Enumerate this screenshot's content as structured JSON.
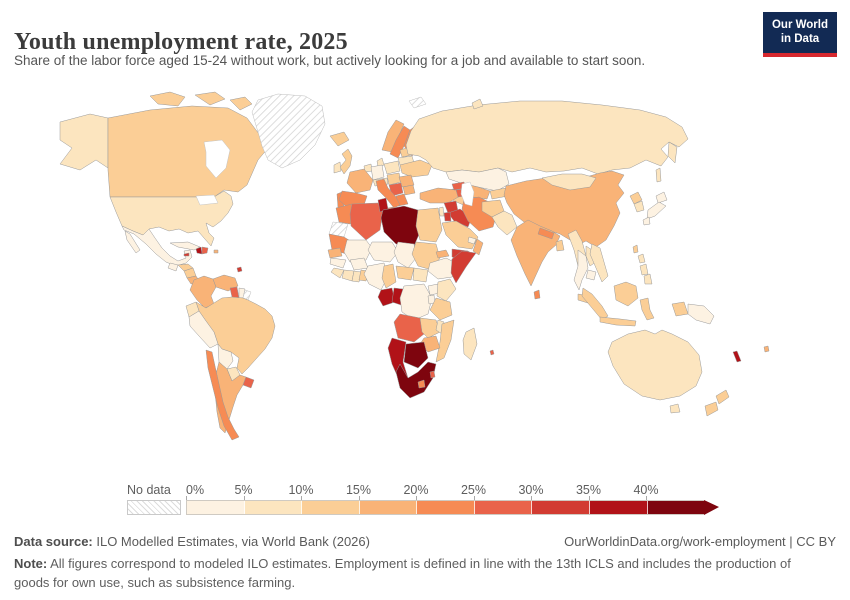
{
  "header": {
    "title": "Youth unemployment rate, 2025",
    "subtitle": "Share of the labor force aged 15-24 without work, but actively looking for a job and available to start soon.",
    "logo": {
      "line1": "Our World",
      "line2": "in Data",
      "bg_color": "#122a54",
      "accent_color": "#d7282f"
    }
  },
  "legend": {
    "no_data_label": "No data",
    "ticks": [
      "0%",
      "5%",
      "10%",
      "15%",
      "20%",
      "25%",
      "30%",
      "35%",
      "40%"
    ],
    "bin_colors": [
      "#fdf2e2",
      "#fce5bf",
      "#fbce96",
      "#f9b377",
      "#f68b54",
      "#e9634a",
      "#d23c32",
      "#b11218",
      "#7e050e"
    ]
  },
  "footer": {
    "datasource_label": "Data source:",
    "datasource_text": " ILO Modelled Estimates, via World Bank (2026)",
    "link_text": "OurWorldinData.org/work-employment | CC BY",
    "note_label": "Note:",
    "note_text": " All figures correspond to modeled ILO estimates. Employment is defined in line with the 13th ICLS and includes the production of goods for own use, such as subsistence farming."
  },
  "chart_data": {
    "type": "choropleth",
    "title": "Youth unemployment rate, 2025",
    "year": "2025",
    "unit": "%",
    "bins": [
      "0-5%",
      "5-10%",
      "10-15%",
      "15-20%",
      "20-25%",
      "25-30%",
      "30-35%",
      "35-40%",
      "40%+"
    ],
    "countries": {
      "canada": {
        "name": "Canada",
        "bin": 2
      },
      "usa": {
        "name": "United States",
        "bin": 1
      },
      "greenland": {
        "name": "Greenland",
        "bin": null
      },
      "iceland": {
        "name": "Iceland",
        "bin": 2
      },
      "mexico": {
        "name": "Mexico",
        "bin": 0
      },
      "guatemala": {
        "name": "Guatemala",
        "bin": 0
      },
      "honduras": {
        "name": "Honduras",
        "bin": 2
      },
      "nicaragua": {
        "name": "Nicaragua",
        "bin": 2
      },
      "costa_rica": {
        "name": "Costa Rica",
        "bin": 3
      },
      "panama": {
        "name": "Panama",
        "bin": 3
      },
      "cuba": {
        "name": "Cuba",
        "bin": 0
      },
      "haiti": {
        "name": "Haiti",
        "bin": 7
      },
      "dominican_republic": {
        "name": "Dominican Republic",
        "bin": 5
      },
      "jamaica": {
        "name": "Jamaica",
        "bin": 6
      },
      "puerto_rico": {
        "name": "Puerto Rico",
        "bin": 3
      },
      "trinidad_tobago": {
        "name": "Trinidad and Tobago",
        "bin": 6
      },
      "colombia": {
        "name": "Colombia",
        "bin": 3
      },
      "venezuela": {
        "name": "Venezuela",
        "bin": 3
      },
      "guyana": {
        "name": "Guyana",
        "bin": 5
      },
      "suriname": {
        "name": "Suriname",
        "bin": 0
      },
      "french_guiana": {
        "name": "French Guiana",
        "bin": null
      },
      "ecuador": {
        "name": "Ecuador",
        "bin": 1
      },
      "peru": {
        "name": "Peru",
        "bin": 0
      },
      "brazil": {
        "name": "Brazil",
        "bin": 2
      },
      "bolivia": {
        "name": "Bolivia",
        "bin": 0
      },
      "paraguay": {
        "name": "Paraguay",
        "bin": 1
      },
      "chile": {
        "name": "Chile",
        "bin": 4
      },
      "argentina": {
        "name": "Argentina",
        "bin": 3
      },
      "uruguay": {
        "name": "Uruguay",
        "bin": 5
      },
      "united_kingdom": {
        "name": "United Kingdom",
        "bin": 2
      },
      "ireland": {
        "name": "Ireland",
        "bin": 1
      },
      "norway": {
        "name": "Norway",
        "bin": 3
      },
      "sweden": {
        "name": "Sweden",
        "bin": 4
      },
      "finland": {
        "name": "Finland",
        "bin": 4
      },
      "denmark": {
        "name": "Denmark",
        "bin": 1
      },
      "germany": {
        "name": "Germany",
        "bin": 0
      },
      "netherlands_belgium": {
        "name": "Netherlands & Belgium",
        "bin": 1
      },
      "france": {
        "name": "France",
        "bin": 3
      },
      "spain": {
        "name": "Spain",
        "bin": 4
      },
      "portugal": {
        "name": "Portugal",
        "bin": 4
      },
      "italy": {
        "name": "Italy",
        "bin": 4
      },
      "switzerland_austria": {
        "name": "Switzerland & Austria",
        "bin": 1
      },
      "poland": {
        "name": "Poland",
        "bin": 1
      },
      "czechia_hungary": {
        "name": "Czechia & Hungary",
        "bin": 2
      },
      "romania": {
        "name": "Romania",
        "bin": 3
      },
      "balkans": {
        "name": "Western Balkans",
        "bin": 5
      },
      "greece": {
        "name": "Greece",
        "bin": 4
      },
      "bulgaria": {
        "name": "Bulgaria",
        "bin": 3
      },
      "ukraine": {
        "name": "Ukraine",
        "bin": 2
      },
      "belarus": {
        "name": "Belarus",
        "bin": 1
      },
      "baltics": {
        "name": "Baltic states",
        "bin": 2
      },
      "russia": {
        "name": "Russia",
        "bin": 1
      },
      "svalbard": {
        "name": "Svalbard",
        "bin": null
      },
      "kazakhstan": {
        "name": "Kazakhstan",
        "bin": 0
      },
      "uzbekistan": {
        "name": "Uzbekistan",
        "bin": 3
      },
      "turkmenistan": {
        "name": "Turkmenistan",
        "bin": 2
      },
      "kyrgyzstan": {
        "name": "Kyrgyzstan & Tajikistan",
        "bin": 2
      },
      "afghanistan": {
        "name": "Afghanistan",
        "bin": 2
      },
      "pakistan": {
        "name": "Pakistan",
        "bin": 1
      },
      "china": {
        "name": "China",
        "bin": 3
      },
      "mongolia": {
        "name": "Mongolia",
        "bin": 1
      },
      "north_korea": {
        "name": "North Korea",
        "bin": 2
      },
      "south_korea": {
        "name": "South Korea",
        "bin": 1
      },
      "japan": {
        "name": "Japan",
        "bin": 0
      },
      "taiwan": {
        "name": "Taiwan",
        "bin": 2
      },
      "india": {
        "name": "India",
        "bin": 3
      },
      "nepal": {
        "name": "Nepal",
        "bin": 4
      },
      "bangladesh": {
        "name": "Bangladesh",
        "bin": 2
      },
      "sri_lanka": {
        "name": "Sri Lanka",
        "bin": 4
      },
      "myanmar": {
        "name": "Myanmar",
        "bin": 1
      },
      "thailand": {
        "name": "Thailand",
        "bin": 0
      },
      "laos": {
        "name": "Laos",
        "bin": 1
      },
      "vietnam": {
        "name": "Vietnam",
        "bin": 1
      },
      "cambodia": {
        "name": "Cambodia",
        "bin": 0
      },
      "malaysia": {
        "name": "Malaysia",
        "bin": 2
      },
      "philippines": {
        "name": "Philippines",
        "bin": 1
      },
      "indonesia": {
        "name": "Indonesia",
        "bin": 2
      },
      "papua_new_guinea": {
        "name": "Papua New Guinea",
        "bin": 0
      },
      "turkey": {
        "name": "Turkey",
        "bin": 3
      },
      "georgia": {
        "name": "Georgia",
        "bin": 5
      },
      "armenia_azerbaijan": {
        "name": "Armenia & Azerbaijan",
        "bin": 5
      },
      "syria": {
        "name": "Syria",
        "bin": 6
      },
      "iraq": {
        "name": "Iraq",
        "bin": 6
      },
      "iran": {
        "name": "Iran",
        "bin": 4
      },
      "jordan": {
        "name": "Jordan",
        "bin": 6
      },
      "israel": {
        "name": "Israel",
        "bin": 1
      },
      "saudi_arabia": {
        "name": "Saudi Arabia",
        "bin": 2
      },
      "yemen": {
        "name": "Yemen",
        "bin": 6
      },
      "oman": {
        "name": "Oman",
        "bin": 3
      },
      "uae": {
        "name": "United Arab Emirates",
        "bin": 0
      },
      "morocco": {
        "name": "Morocco",
        "bin": 4
      },
      "western_sahara": {
        "name": "Western Sahara",
        "bin": null
      },
      "algeria": {
        "name": "Algeria",
        "bin": 5
      },
      "tunisia": {
        "name": "Tunisia",
        "bin": 7
      },
      "libya": {
        "name": "Libya",
        "bin": 8
      },
      "egypt": {
        "name": "Egypt",
        "bin": 2
      },
      "mauritania": {
        "name": "Mauritania",
        "bin": 4
      },
      "mali": {
        "name": "Mali",
        "bin": 0
      },
      "niger": {
        "name": "Niger",
        "bin": 0
      },
      "chad": {
        "name": "Chad",
        "bin": 0
      },
      "sudan": {
        "name": "Sudan",
        "bin": 2
      },
      "eritrea": {
        "name": "Eritrea",
        "bin": 3
      },
      "ethiopia": {
        "name": "Ethiopia",
        "bin": 0
      },
      "somalia": {
        "name": "Somalia",
        "bin": 6
      },
      "senegal": {
        "name": "Senegal",
        "bin": 3
      },
      "guinea": {
        "name": "Guinea",
        "bin": 0
      },
      "sierra_leone_liberia": {
        "name": "Sierra Leone & Liberia",
        "bin": 1
      },
      "ivory_coast": {
        "name": "Côte d'Ivoire",
        "bin": 1
      },
      "ghana": {
        "name": "Ghana",
        "bin": 1
      },
      "togo_benin": {
        "name": "Togo & Benin",
        "bin": 2
      },
      "burkina_faso": {
        "name": "Burkina Faso",
        "bin": 0
      },
      "nigeria": {
        "name": "Nigeria",
        "bin": 0
      },
      "cameroon": {
        "name": "Cameroon",
        "bin": 2
      },
      "central_african_republic": {
        "name": "Central African Republic",
        "bin": 2
      },
      "south_sudan": {
        "name": "South Sudan",
        "bin": 1
      },
      "gabon": {
        "name": "Gabon",
        "bin": 7
      },
      "congo": {
        "name": "Congo",
        "bin": 7
      },
      "drc": {
        "name": "Democratic Republic of Congo",
        "bin": 0
      },
      "uganda": {
        "name": "Uganda",
        "bin": 0
      },
      "kenya": {
        "name": "Kenya",
        "bin": 1
      },
      "rwanda_burundi": {
        "name": "Rwanda & Burundi",
        "bin": 0
      },
      "tanzania": {
        "name": "Tanzania",
        "bin": 2
      },
      "angola": {
        "name": "Angola",
        "bin": 5
      },
      "zambia": {
        "name": "Zambia",
        "bin": 2
      },
      "malawi": {
        "name": "Malawi",
        "bin": 1
      },
      "mozambique": {
        "name": "Mozambique",
        "bin": 2
      },
      "zimbabwe": {
        "name": "Zimbabwe",
        "bin": 3
      },
      "botswana": {
        "name": "Botswana",
        "bin": 8
      },
      "namibia": {
        "name": "Namibia",
        "bin": 7
      },
      "south_africa": {
        "name": "South Africa",
        "bin": 8
      },
      "lesotho": {
        "name": "Lesotho",
        "bin": 4
      },
      "eswatini": {
        "name": "Eswatini",
        "bin": 5
      },
      "madagascar": {
        "name": "Madagascar",
        "bin": 1
      },
      "mauritius": {
        "name": "Mauritius",
        "bin": 5
      },
      "australia": {
        "name": "Australia",
        "bin": 1
      },
      "new_zealand": {
        "name": "New Zealand",
        "bin": 2
      },
      "new_caledonia": {
        "name": "New Caledonia",
        "bin": 7
      },
      "fiji": {
        "name": "Fiji",
        "bin": 3
      }
    }
  }
}
